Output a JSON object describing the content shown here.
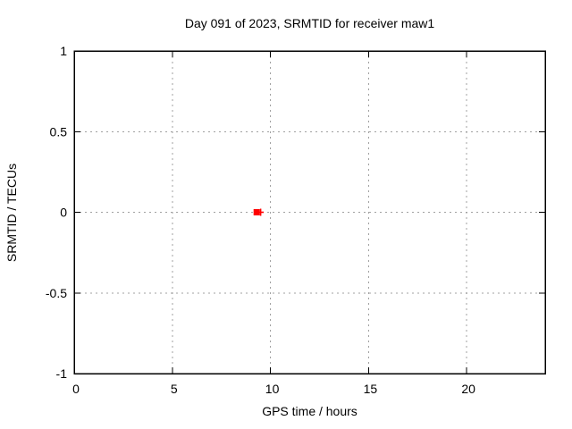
{
  "chart_data": {
    "type": "scatter",
    "title": "Day 091 of 2023, SRMTID for receiver maw1",
    "xlabel": "GPS time / hours",
    "ylabel": "SRMTID / TECUs",
    "xlim": [
      0,
      24
    ],
    "ylim": [
      -1,
      1
    ],
    "xticks": [
      0,
      5,
      10,
      15,
      20
    ],
    "yticks": [
      1,
      0.5,
      0,
      -0.5,
      -1
    ],
    "grid": true,
    "legend": false,
    "series": [
      {
        "marker": "square",
        "color": "#ff0000",
        "points": [
          [
            9.3,
            0.0
          ]
        ]
      },
      {
        "marker": "plus",
        "color": "#ff0000",
        "points": [
          [
            9.5,
            0.0
          ]
        ]
      }
    ],
    "colors": {
      "grid": "#a0a0a0",
      "axis": "#000000",
      "background": "#ffffff"
    }
  }
}
